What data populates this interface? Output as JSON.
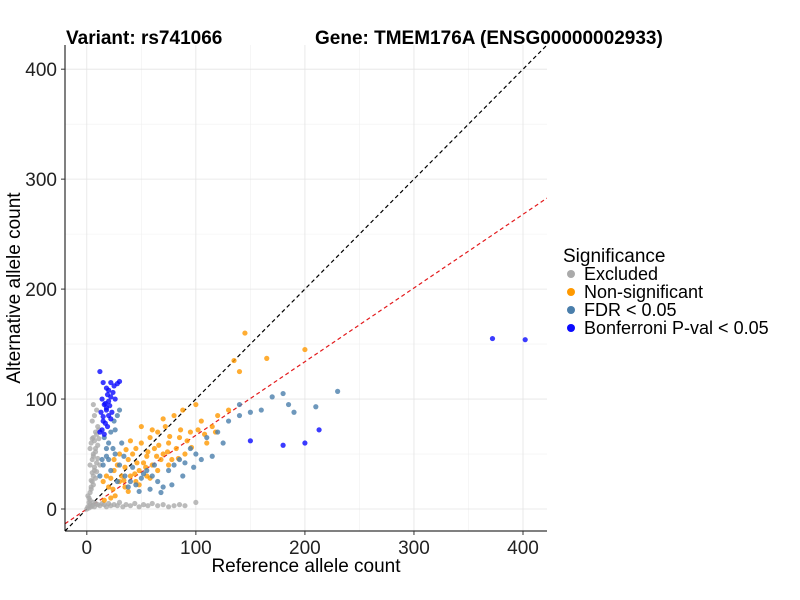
{
  "chart_data": {
    "type": "scatter",
    "title_left": "Variant: rs741066",
    "title_right": "Gene: TMEM176A (ENSG00000002933)",
    "xlabel": "Reference allele count",
    "ylabel": "Alternative allele count",
    "xlim": [
      -20,
      422
    ],
    "ylim": [
      -20,
      422
    ],
    "xticks": [
      0,
      100,
      200,
      300,
      400
    ],
    "yticks": [
      0,
      100,
      200,
      300,
      400
    ],
    "grid": true,
    "reference_lines": [
      {
        "name": "identity",
        "slope": 1.0,
        "intercept": 0,
        "color": "#000000",
        "style": "dashed"
      },
      {
        "name": "fit",
        "slope": 0.67,
        "intercept": 0,
        "color": "#e31a1c",
        "style": "dashed"
      }
    ],
    "legend": {
      "title": "Significance",
      "position": "right",
      "entries": [
        {
          "label": "Excluded",
          "color": "#aaaaaa"
        },
        {
          "label": "Non-significant",
          "color": "#ff9900"
        },
        {
          "label": "FDR < 0.05",
          "color": "#4a7eab"
        },
        {
          "label": "Bonferroni P-val < 0.05",
          "color": "#0a0aff"
        }
      ]
    },
    "series": [
      {
        "name": "Excluded",
        "color": "#aaaaaa",
        "points": [
          [
            0,
            0
          ],
          [
            1,
            2
          ],
          [
            2,
            1
          ],
          [
            3,
            4
          ],
          [
            4,
            2
          ],
          [
            5,
            3
          ],
          [
            6,
            6
          ],
          [
            7,
            2
          ],
          [
            8,
            5
          ],
          [
            10,
            4
          ],
          [
            12,
            3
          ],
          [
            14,
            5
          ],
          [
            16,
            4
          ],
          [
            18,
            2
          ],
          [
            20,
            5
          ],
          [
            22,
            3
          ],
          [
            25,
            4
          ],
          [
            28,
            3
          ],
          [
            30,
            6
          ],
          [
            33,
            2
          ],
          [
            36,
            4
          ],
          [
            40,
            3
          ],
          [
            44,
            5
          ],
          [
            48,
            2
          ],
          [
            52,
            4
          ],
          [
            56,
            3
          ],
          [
            60,
            5
          ],
          [
            65,
            3
          ],
          [
            70,
            4
          ],
          [
            75,
            2
          ],
          [
            80,
            3
          ],
          [
            85,
            4
          ],
          [
            90,
            3
          ],
          [
            100,
            6
          ],
          [
            2,
            10
          ],
          [
            3,
            15
          ],
          [
            4,
            20
          ],
          [
            5,
            25
          ],
          [
            6,
            30
          ],
          [
            7,
            35
          ],
          [
            3,
            40
          ],
          [
            5,
            45
          ],
          [
            6,
            50
          ],
          [
            8,
            55
          ],
          [
            4,
            60
          ],
          [
            6,
            65
          ],
          [
            8,
            70
          ],
          [
            10,
            75
          ],
          [
            5,
            80
          ],
          [
            7,
            85
          ],
          [
            9,
            90
          ],
          [
            6,
            95
          ],
          [
            4,
            18
          ],
          [
            6,
            22
          ],
          [
            8,
            28
          ],
          [
            5,
            33
          ],
          [
            7,
            38
          ],
          [
            9,
            42
          ],
          [
            6,
            48
          ],
          [
            8,
            52
          ],
          [
            10,
            58
          ],
          [
            7,
            62
          ],
          [
            9,
            68
          ],
          [
            11,
            72
          ],
          [
            2,
            6
          ],
          [
            3,
            8
          ],
          [
            1,
            12
          ],
          [
            4,
            26
          ],
          [
            9,
            34
          ],
          [
            10,
            46
          ],
          [
            12,
            40
          ],
          [
            3,
            55
          ],
          [
            5,
            64
          ],
          [
            11,
            64
          ]
        ]
      },
      {
        "name": "Non-significant",
        "color": "#ff9900",
        "points": [
          [
            20,
            20
          ],
          [
            22,
            28
          ],
          [
            25,
            35
          ],
          [
            28,
            40
          ],
          [
            30,
            25
          ],
          [
            32,
            30
          ],
          [
            35,
            38
          ],
          [
            38,
            45
          ],
          [
            40,
            30
          ],
          [
            42,
            50
          ],
          [
            45,
            55
          ],
          [
            48,
            35
          ],
          [
            50,
            60
          ],
          [
            52,
            42
          ],
          [
            55,
            48
          ],
          [
            58,
            65
          ],
          [
            60,
            40
          ],
          [
            62,
            55
          ],
          [
            65,
            70
          ],
          [
            68,
            45
          ],
          [
            70,
            50
          ],
          [
            72,
            75
          ],
          [
            75,
            60
          ],
          [
            78,
            45
          ],
          [
            80,
            85
          ],
          [
            82,
            55
          ],
          [
            85,
            65
          ],
          [
            88,
            90
          ],
          [
            90,
            50
          ],
          [
            95,
            70
          ],
          [
            100,
            95
          ],
          [
            105,
            80
          ],
          [
            110,
            60
          ],
          [
            115,
            75
          ],
          [
            120,
            85
          ],
          [
            130,
            90
          ],
          [
            135,
            135
          ],
          [
            140,
            125
          ],
          [
            145,
            160
          ],
          [
            165,
            137
          ],
          [
            200,
            145
          ],
          [
            35,
            20
          ],
          [
            45,
            25
          ],
          [
            55,
            30
          ],
          [
            65,
            35
          ],
          [
            75,
            40
          ],
          [
            60,
            72
          ],
          [
            70,
            82
          ],
          [
            30,
            50
          ],
          [
            40,
            62
          ],
          [
            50,
            75
          ],
          [
            25,
            45
          ],
          [
            18,
            30
          ],
          [
            15,
            25
          ],
          [
            36,
            54
          ],
          [
            46,
            42
          ],
          [
            56,
            52
          ],
          [
            66,
            58
          ],
          [
            76,
            66
          ],
          [
            86,
            72
          ],
          [
            96,
            56
          ],
          [
            44,
            32
          ],
          [
            54,
            38
          ],
          [
            64,
            48
          ],
          [
            74,
            52
          ],
          [
            84,
            46
          ],
          [
            92,
            62
          ],
          [
            102,
            72
          ],
          [
            108,
            68
          ],
          [
            118,
            70
          ],
          [
            24,
            18
          ],
          [
            34,
            26
          ],
          [
            26,
            12
          ],
          [
            38,
            16
          ],
          [
            48,
            22
          ],
          [
            58,
            28
          ],
          [
            16,
            8
          ],
          [
            22,
            10
          ]
        ]
      },
      {
        "name": "FDR < 0.05",
        "color": "#4a7eab",
        "points": [
          [
            15,
            40
          ],
          [
            18,
            55
          ],
          [
            20,
            60
          ],
          [
            22,
            70
          ],
          [
            25,
            80
          ],
          [
            28,
            85
          ],
          [
            30,
            90
          ],
          [
            12,
            30
          ],
          [
            14,
            45
          ],
          [
            16,
            65
          ],
          [
            20,
            45
          ],
          [
            24,
            55
          ],
          [
            26,
            72
          ],
          [
            32,
            60
          ],
          [
            35,
            30
          ],
          [
            40,
            25
          ],
          [
            45,
            22
          ],
          [
            50,
            28
          ],
          [
            55,
            35
          ],
          [
            60,
            30
          ],
          [
            65,
            25
          ],
          [
            70,
            20
          ],
          [
            75,
            35
          ],
          [
            80,
            40
          ],
          [
            85,
            45
          ],
          [
            90,
            42
          ],
          [
            95,
            55
          ],
          [
            100,
            50
          ],
          [
            110,
            65
          ],
          [
            120,
            70
          ],
          [
            130,
            80
          ],
          [
            140,
            85
          ],
          [
            150,
            88
          ],
          [
            160,
            90
          ],
          [
            170,
            102
          ],
          [
            180,
            105
          ],
          [
            185,
            95
          ],
          [
            190,
            88
          ],
          [
            210,
            93
          ],
          [
            230,
            107
          ],
          [
            140,
            95
          ],
          [
            125,
            60
          ],
          [
            115,
            48
          ],
          [
            105,
            45
          ],
          [
            98,
            38
          ],
          [
            88,
            30
          ],
          [
            78,
            22
          ],
          [
            68,
            15
          ],
          [
            58,
            18
          ],
          [
            48,
            16
          ],
          [
            38,
            20
          ],
          [
            28,
            25
          ],
          [
            22,
            35
          ],
          [
            18,
            48
          ],
          [
            26,
            50
          ],
          [
            30,
            40
          ],
          [
            34,
            48
          ],
          [
            42,
            38
          ],
          [
            52,
            32
          ],
          [
            62,
            40
          ]
        ]
      },
      {
        "name": "Bonferroni P-val < 0.05",
        "color": "#0a0aff",
        "points": [
          [
            12,
            125
          ],
          [
            15,
            115
          ],
          [
            18,
            110
          ],
          [
            20,
            108
          ],
          [
            22,
            115
          ],
          [
            25,
            112
          ],
          [
            28,
            114
          ],
          [
            30,
            116
          ],
          [
            14,
            100
          ],
          [
            16,
            95
          ],
          [
            18,
            90
          ],
          [
            20,
            85
          ],
          [
            15,
            80
          ],
          [
            17,
            78
          ],
          [
            19,
            75
          ],
          [
            22,
            82
          ],
          [
            12,
            70
          ],
          [
            14,
            72
          ],
          [
            16,
            68
          ],
          [
            18,
            92
          ],
          [
            20,
            98
          ],
          [
            22,
            102
          ],
          [
            24,
            106
          ],
          [
            13,
            88
          ],
          [
            15,
            84
          ],
          [
            17,
            96
          ],
          [
            19,
            104
          ],
          [
            21,
            94
          ],
          [
            23,
            88
          ],
          [
            26,
            100
          ],
          [
            150,
            62
          ],
          [
            180,
            58
          ],
          [
            200,
            60
          ],
          [
            213,
            72
          ],
          [
            372,
            155
          ],
          [
            402,
            154
          ]
        ]
      }
    ]
  }
}
